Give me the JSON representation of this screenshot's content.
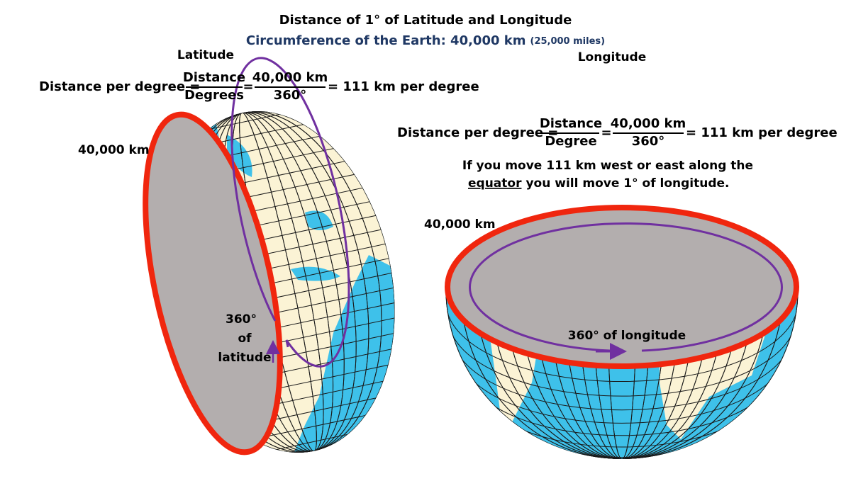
{
  "title": "Distance of 1° of Latitude and Longitude",
  "subtitle": {
    "main": "Circumference of the Earth: 40,000 km",
    "note": "(25,000 miles)"
  },
  "latitude": {
    "heading": "Latitude",
    "formula": {
      "lead": "Distance per degree =",
      "fraction1": {
        "numerator": "Distance",
        "denominator": "Degrees"
      },
      "equals": "=",
      "fraction2": {
        "numerator": "40,000 km",
        "denominator": "360°"
      },
      "result": "= 111 km per degree"
    },
    "circumference": "40,000 km",
    "arc_label": [
      "360°",
      "of",
      "latitude"
    ]
  },
  "longitude": {
    "heading": "Longitude",
    "formula": {
      "lead": "Distance per degree =",
      "fraction1": {
        "numerator": "Distance",
        "denominator": "Degree"
      },
      "equals": "=",
      "fraction2": {
        "numerator": "40,000 km",
        "denominator": "360°"
      },
      "result": "= 111 km per degree"
    },
    "note": {
      "line1": "If you move 111 km west or east along the",
      "line2_underlined": "equator",
      "line2_rest": "you will move 1° of longitude."
    },
    "circumference": "40,000 km",
    "arc_label": "360° of longitude"
  }
}
